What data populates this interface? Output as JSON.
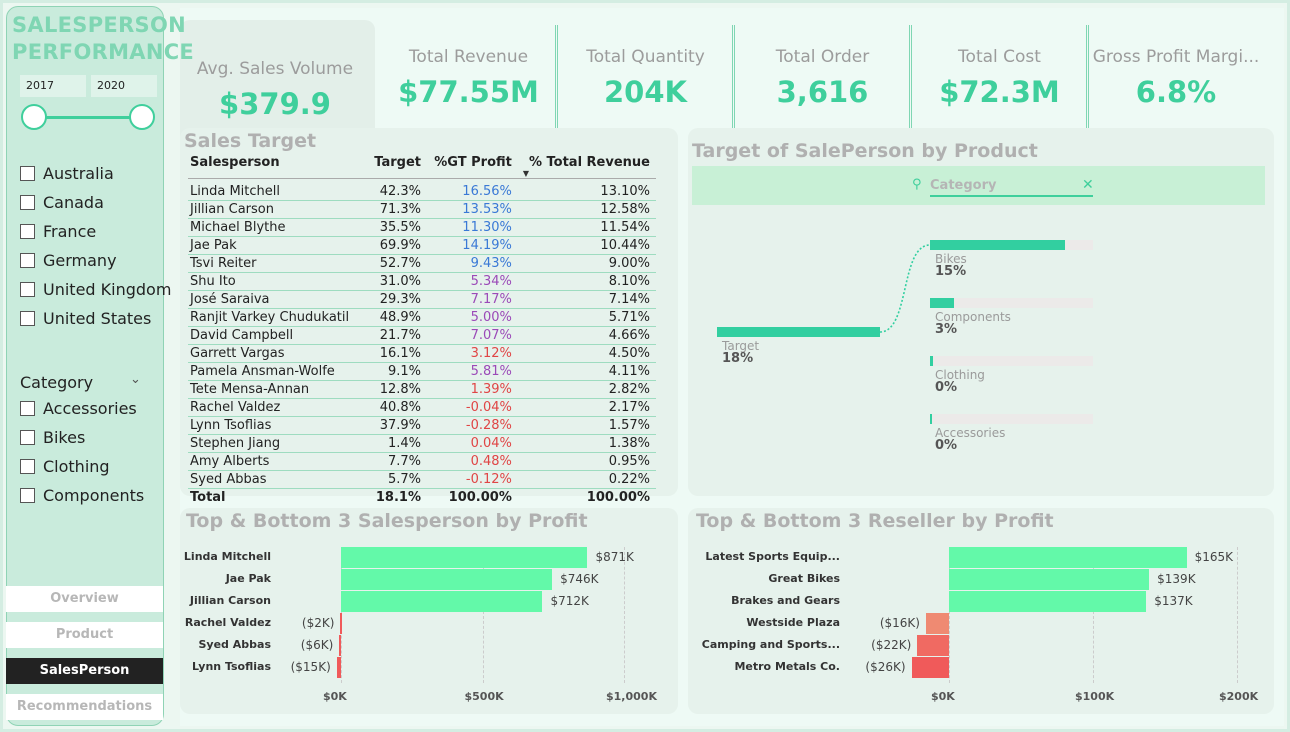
{
  "sidebar": {
    "title_line1": "SALESPERSON",
    "title_line2": "PERFORMANCE",
    "year_start": "2017",
    "year_end": "2020",
    "countries": [
      "Australia",
      "Canada",
      "France",
      "Germany",
      "United Kingdom",
      "United States"
    ],
    "category_label": "Category",
    "categories": [
      "Accessories",
      "Bikes",
      "Clothing",
      "Components"
    ],
    "nav": [
      "Overview",
      "Product",
      "SalesPerson",
      "Recommendations"
    ]
  },
  "kpis": [
    {
      "label": "Avg. Sales Volume",
      "value": "$379.9"
    },
    {
      "label": "Total Revenue",
      "value": "$77.55M"
    },
    {
      "label": "Total Quantity",
      "value": "204K"
    },
    {
      "label": "Total Order",
      "value": "3,616"
    },
    {
      "label": "Total Cost",
      "value": "$72.3M"
    },
    {
      "label": "Gross Profit Margi...",
      "value": "6.8%"
    }
  ],
  "sales_target": {
    "title": "Sales Target",
    "columns": [
      "Salesperson",
      "Target",
      "%GT Profit",
      "% Total Revenue"
    ],
    "rows": [
      [
        "Linda Mitchell",
        "42.3%",
        "16.56%",
        "13.10%"
      ],
      [
        "Jillian Carson",
        "71.3%",
        "13.53%",
        "12.58%"
      ],
      [
        "Michael Blythe",
        "35.5%",
        "11.30%",
        "11.54%"
      ],
      [
        "Jae Pak",
        "69.9%",
        "14.19%",
        "10.44%"
      ],
      [
        "Tsvi Reiter",
        "52.7%",
        "9.43%",
        "9.00%"
      ],
      [
        "Shu Ito",
        "31.0%",
        "5.34%",
        "8.10%"
      ],
      [
        "José Saraiva",
        "29.3%",
        "7.17%",
        "7.14%"
      ],
      [
        "Ranjit Varkey Chudukatil",
        "48.9%",
        "5.00%",
        "5.71%"
      ],
      [
        "David Campbell",
        "21.7%",
        "7.07%",
        "4.66%"
      ],
      [
        "Garrett Vargas",
        "16.1%",
        "3.12%",
        "4.50%"
      ],
      [
        "Pamela Ansman-Wolfe",
        "9.1%",
        "5.81%",
        "4.11%"
      ],
      [
        "Tete Mensa-Annan",
        "12.8%",
        "1.39%",
        "2.82%"
      ],
      [
        "Rachel Valdez",
        "40.8%",
        "-0.04%",
        "2.17%"
      ],
      [
        "Lynn Tsoflias",
        "37.9%",
        "-0.28%",
        "1.57%"
      ],
      [
        "Stephen Jiang",
        "1.4%",
        "0.04%",
        "1.38%"
      ],
      [
        "Amy Alberts",
        "7.7%",
        "0.48%",
        "0.95%"
      ],
      [
        "Syed Abbas",
        "5.7%",
        "-0.12%",
        "0.22%"
      ]
    ],
    "profit_color": [
      "blue",
      "blue",
      "blue",
      "blue",
      "blue",
      "purple",
      "purple",
      "purple",
      "purple",
      "red",
      "purple",
      "red",
      "red",
      "red",
      "red",
      "red",
      "red"
    ],
    "total": [
      "Total",
      "18.1%",
      "100.00%",
      "100.00%"
    ]
  },
  "decomp": {
    "title": "Target of SalePerson by Product",
    "field_label": "Category",
    "root": {
      "name": "Target",
      "pct": "18%"
    },
    "items": [
      {
        "name": "Bikes",
        "pct": "15%",
        "fill": 0.83
      },
      {
        "name": "Components",
        "pct": "3%",
        "fill": 0.15
      },
      {
        "name": "Clothing",
        "pct": "0%",
        "fill": 0.02
      },
      {
        "name": "Accessories",
        "pct": "0%",
        "fill": 0.01
      }
    ],
    "colors": {
      "bar": "#32cfa0",
      "track": "#eceae9"
    }
  },
  "chart_data": [
    {
      "type": "bar",
      "orientation": "horizontal",
      "title": "Top & Bottom 3 Salesperson by Profit",
      "categories": [
        "Linda Mitchell",
        "Jae Pak",
        "Jillian Carson",
        "Rachel Valdez",
        "Syed Abbas",
        "Lynn Tsoflias"
      ],
      "values": [
        871,
        746,
        712,
        -2,
        -6,
        -15
      ],
      "value_labels": [
        "$871K",
        "$746K",
        "$712K",
        "($2K)",
        "($6K)",
        "($15K)"
      ],
      "xlim": [
        0,
        1100
      ],
      "ticks": [
        0,
        500,
        1000
      ],
      "tick_labels": [
        "$0K",
        "$500K",
        "$1,000K"
      ],
      "colors": {
        "positive": "#63f9a9",
        "negative": "#f05a5a"
      }
    },
    {
      "type": "bar",
      "orientation": "horizontal",
      "title": "Top & Bottom 3 Reseller by Profit",
      "categories": [
        "Latest Sports Equip...",
        "Great Bikes",
        "Brakes and Gears",
        "Westside Plaza",
        "Camping and Sports...",
        "Metro Metals Co."
      ],
      "values": [
        165,
        139,
        137,
        -16,
        -22,
        -26
      ],
      "value_labels": [
        "$165K",
        "$139K",
        "$137K",
        "($16K)",
        "($22K)",
        "($26K)"
      ],
      "xlim": [
        -30,
        215
      ],
      "ticks": [
        0,
        100,
        200
      ],
      "tick_labels": [
        "$0K",
        "$100K",
        "$200K"
      ],
      "colors": {
        "positive": "#63f9a9",
        "negative": [
          "#ef8a72",
          "#f06a62",
          "#f05a5a"
        ]
      }
    }
  ]
}
